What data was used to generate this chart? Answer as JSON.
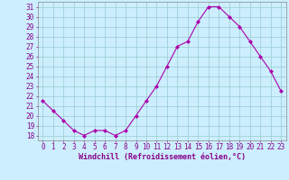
{
  "x": [
    0,
    1,
    2,
    3,
    4,
    5,
    6,
    7,
    8,
    9,
    10,
    11,
    12,
    13,
    14,
    15,
    16,
    17,
    18,
    19,
    20,
    21,
    22,
    23
  ],
  "y": [
    21.5,
    20.5,
    19.5,
    18.5,
    18.0,
    18.5,
    18.5,
    18.0,
    18.5,
    20.0,
    21.5,
    23.0,
    25.0,
    27.0,
    27.5,
    29.5,
    31.0,
    31.0,
    30.0,
    29.0,
    27.5,
    26.0,
    24.5,
    22.5
  ],
  "line_color": "#aa00aa",
  "marker": "D",
  "marker_size": 2,
  "bg_color": "#cceeff",
  "grid_color": "#99cccc",
  "xlabel": "Windchill (Refroidissement éolien,°C)",
  "xlabel_color": "#880088",
  "tick_color": "#880088",
  "ylim_min": 17.5,
  "ylim_max": 31.5,
  "yticks": [
    18,
    19,
    20,
    21,
    22,
    23,
    24,
    25,
    26,
    27,
    28,
    29,
    30,
    31
  ],
  "xticks": [
    0,
    1,
    2,
    3,
    4,
    5,
    6,
    7,
    8,
    9,
    10,
    11,
    12,
    13,
    14,
    15,
    16,
    17,
    18,
    19,
    20,
    21,
    22,
    23
  ],
  "spine_color": "#888888",
  "tick_fontsize": 5.5,
  "xlabel_fontsize": 6.0
}
